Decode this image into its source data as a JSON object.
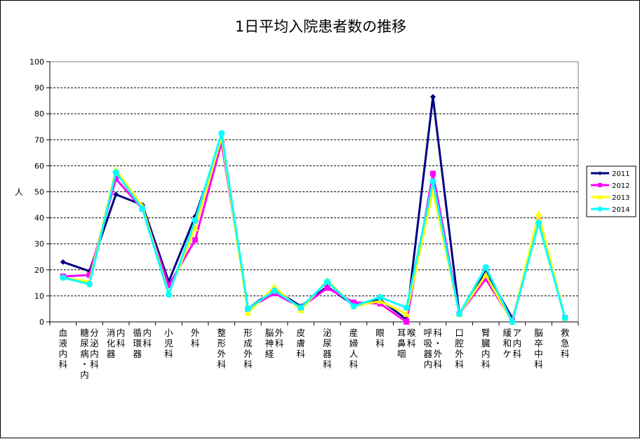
{
  "chart_data": {
    "type": "line",
    "title": "1日平均入院患者数の推移",
    "xlabel": "",
    "ylabel": "人",
    "ylim": [
      0,
      100
    ],
    "yticks": [
      0,
      10,
      20,
      30,
      40,
      50,
      60,
      70,
      80,
      90,
      100
    ],
    "grid": "horizontal-dashed",
    "legend_position": "right",
    "categories": [
      "血液内科",
      "糖尿病・内分泌内科",
      "消化器内科",
      "循環器内科",
      "小児科",
      "外科",
      "整形外科",
      "形成外科",
      "脳神経外科",
      "皮膚科",
      "泌尿器科",
      "産婦人科",
      "眼科",
      "耳鼻咽喉科",
      "呼吸器内科・外科",
      "口腔外科",
      "腎臓内科",
      "緩和ケア内科",
      "脳卒中科",
      "救急科"
    ],
    "series": [
      {
        "name": "2011",
        "color": "#000080",
        "marker": "diamond",
        "values": [
          23,
          19.5,
          49,
          45,
          15.5,
          40.5,
          70,
          5,
          12.5,
          6,
          13.5,
          6.5,
          8.5,
          1,
          86.5,
          3,
          19.5,
          1.5,
          null,
          null
        ]
      },
      {
        "name": "2012",
        "color": "#FF00FF",
        "marker": "square",
        "values": [
          17.5,
          18,
          55,
          43.5,
          14,
          31.5,
          69,
          5,
          11,
          5.5,
          13,
          7.5,
          7,
          0,
          57,
          3,
          16.5,
          0.5,
          39,
          1.5
        ]
      },
      {
        "name": "2013",
        "color": "#FFFF00",
        "marker": "triangle",
        "values": [
          17,
          15.5,
          58.5,
          44.5,
          11,
          36,
          71,
          3.5,
          13.5,
          4.5,
          16,
          6,
          8,
          3,
          50.5,
          3,
          18,
          0,
          41.5,
          1.5
        ]
      },
      {
        "name": "2014",
        "color": "#00FFFF",
        "marker": "circle",
        "values": [
          17,
          14.5,
          57.5,
          43.5,
          10.5,
          39,
          72.5,
          5,
          12,
          5.5,
          15.5,
          6,
          9.5,
          5.5,
          54,
          3,
          21,
          0,
          38,
          1.5
        ]
      }
    ]
  }
}
